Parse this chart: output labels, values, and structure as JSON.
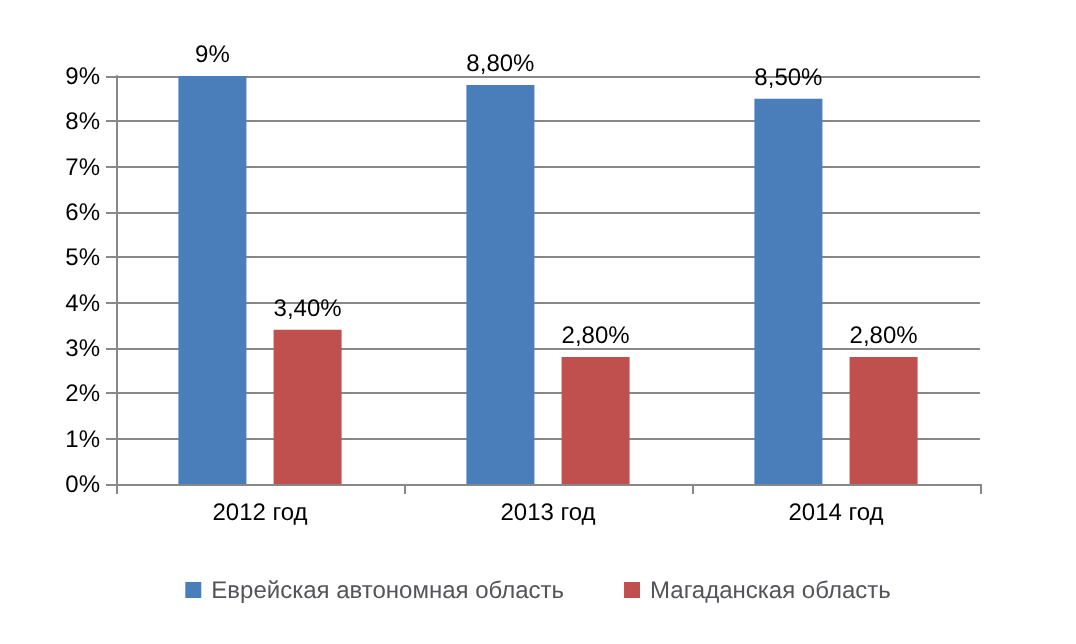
{
  "chart_data": {
    "type": "bar",
    "categories": [
      "2012 год",
      "2013 год",
      "2014 год"
    ],
    "series": [
      {
        "name": "Еврейская автономная область",
        "color": "#4a7ebb",
        "values": [
          9,
          8.8,
          8.5
        ],
        "value_labels": [
          "9%",
          "8,80%",
          "8,50%"
        ]
      },
      {
        "name": "Магаданская область",
        "color": "#c0504d",
        "values": [
          3.4,
          2.8,
          2.8
        ],
        "value_labels": [
          "3,40%",
          "2,80%",
          "2,80%"
        ]
      }
    ],
    "ylim": [
      0,
      9
    ],
    "yticks": [
      {
        "value": 0,
        "label": "0%"
      },
      {
        "value": 1,
        "label": "1%"
      },
      {
        "value": 2,
        "label": "2%"
      },
      {
        "value": 3,
        "label": "3%"
      },
      {
        "value": 4,
        "label": "4%"
      },
      {
        "value": 5,
        "label": "5%"
      },
      {
        "value": 6,
        "label": "6%"
      },
      {
        "value": 7,
        "label": "7%"
      },
      {
        "value": 8,
        "label": "8%"
      },
      {
        "value": 9,
        "label": "9%"
      }
    ],
    "grid": "y",
    "legend": "bottom"
  }
}
